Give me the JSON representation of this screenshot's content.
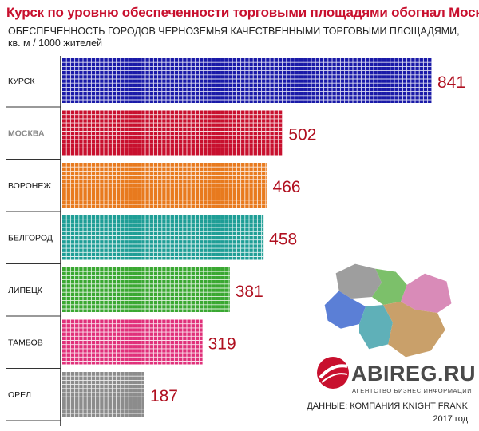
{
  "header": {
    "title": "Курск по уровню обеспеченности торговыми площадями обогнал Москву",
    "subtitle_line1": "ОБЕСПЕЧЕННОСТЬ ГОРОДОВ ЧЕРНОЗЕМЬЯ КАЧЕСТВЕННЫМИ ТОРГОВЫМИ ПЛОЩАДЯМИ,",
    "subtitle_line2": "кв. м / 1000 жителей"
  },
  "footer": {
    "brand": "ABIREG.RU",
    "brand_tagline": "АГЕНТСТВО БИЗНЕС ИНФОРМАЦИИ",
    "source": "ДАННЫЕ: КОМПАНИЯ KNIGHT FRANK",
    "year": "2017 год"
  },
  "colors": {
    "title": "#c8102e",
    "value_labels": "#b01020",
    "bars": [
      "#1a1aa8",
      "#c8102e",
      "#e87a1e",
      "#1f9e96",
      "#3aa832",
      "#e0307a",
      "#8c8c8c"
    ]
  },
  "chart_data": {
    "type": "bar",
    "orientation": "horizontal",
    "title": "Курск по уровню обеспеченности торговыми площадями обогнал Москву",
    "subtitle": "ОБЕСПЕЧЕННОСТЬ ГОРОДОВ ЧЕРНОЗЕМЬЯ КАЧЕСТВЕННЫМИ ТОРГОВЫМИ ПЛОЩАДЯМИ, кв. м / 1000 жителей",
    "categories": [
      "КУРСК",
      "МОСКВА",
      "ВОРОНЕЖ",
      "БЕЛГОРОД",
      "ЛИПЕЦК",
      "ТАМБОВ",
      "ОРЕЛ"
    ],
    "values": [
      841,
      502,
      466,
      458,
      381,
      319,
      187
    ],
    "value_labels": [
      "841",
      "502",
      "466",
      "458",
      "381",
      "319",
      "187"
    ],
    "highlighted_category": "МОСКВА",
    "xlabel": "",
    "ylabel": "",
    "grid": false,
    "legend": false
  }
}
